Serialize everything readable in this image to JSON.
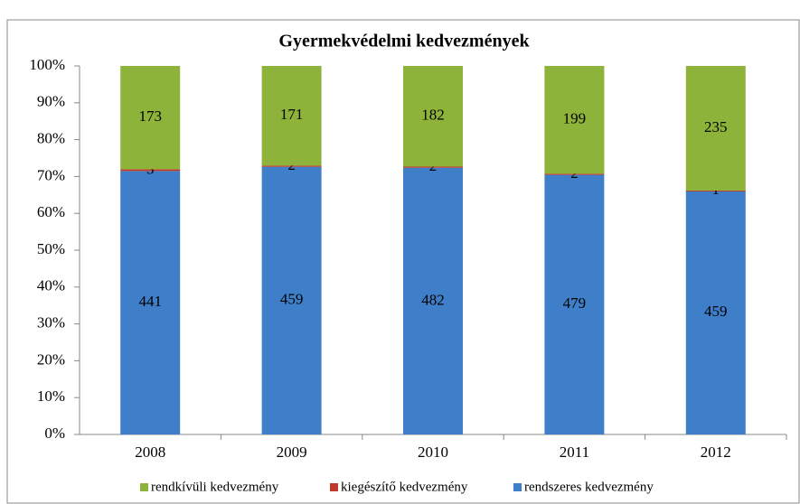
{
  "chart_data": {
    "type": "bar",
    "stacked": "percent",
    "title": "Gyermekvédelmi kedvezmények",
    "categories": [
      "2008",
      "2009",
      "2010",
      "2011",
      "2012"
    ],
    "series": [
      {
        "name": "rendkívüli kedvezmény",
        "color": "#8db33a",
        "values": [
          173,
          171,
          182,
          199,
          235
        ]
      },
      {
        "name": "kiegészítő kedvezmény",
        "color": "#c0392b",
        "values": [
          3,
          2,
          2,
          2,
          1
        ]
      },
      {
        "name": "rendszeres kedvezmény",
        "color": "#3f7fca",
        "values": [
          441,
          459,
          482,
          479,
          459
        ]
      }
    ],
    "ylim": [
      0,
      100
    ],
    "yticks": [
      {
        "value": 0,
        "label": "0%"
      },
      {
        "value": 10,
        "label": "10%"
      },
      {
        "value": 20,
        "label": "20%"
      },
      {
        "value": 30,
        "label": "30%"
      },
      {
        "value": 40,
        "label": "40%"
      },
      {
        "value": 50,
        "label": "50%"
      },
      {
        "value": 60,
        "label": "60%"
      },
      {
        "value": 70,
        "label": "70%"
      },
      {
        "value": 80,
        "label": "80%"
      },
      {
        "value": 90,
        "label": "90%"
      },
      {
        "value": 100,
        "label": "100%"
      }
    ],
    "legend": "bottom"
  }
}
